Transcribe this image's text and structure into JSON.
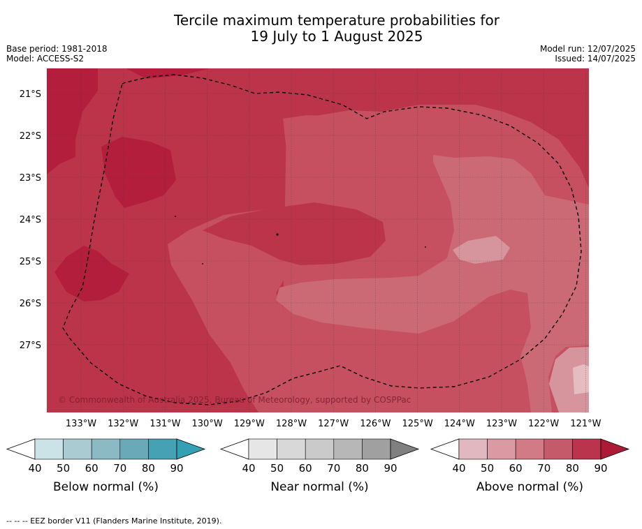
{
  "title_line1": "Tercile maximum temperature probabilities for",
  "title_line2": "19 July to 1 August 2025",
  "base_period": "Base period: 1981-2018",
  "model": "Model: ACCESS-S2",
  "model_run": "Model run: 12/07/2025",
  "issued": "Issued: 14/07/2025",
  "copyright": "© Commonwealth of Australia 2025, Bureau of Meteorology, supported by COSPPac",
  "footer": "-- -- -- EEZ border V11 (Flanders Marine Institute, 2019).",
  "map": {
    "lat_labels": [
      "21°S",
      "22°S",
      "23°S",
      "24°S",
      "25°S",
      "26°S",
      "27°S"
    ],
    "lon_labels": [
      "133°W",
      "132°W",
      "131°W",
      "130°W",
      "129°W",
      "128°W",
      "127°W",
      "126°W",
      "125°W",
      "124°W",
      "123°W",
      "122°W",
      "121°W"
    ]
  },
  "colors": {
    "above_90": "#b21e3b",
    "above_80": "#bc3449",
    "above_70": "#c6505f",
    "above_60": "#cb6a75",
    "above_50": "#d6959d",
    "above_40": "#e5bcc0"
  },
  "colorbars": [
    {
      "label": "Below normal (%)",
      "ticks": [
        "40",
        "50",
        "60",
        "70",
        "80",
        "90"
      ],
      "colors": [
        "#cbe2e7",
        "#a9cbd1",
        "#8bb9c4",
        "#6aa9b8",
        "#45a1b3",
        "#34a0b4"
      ]
    },
    {
      "label": "Near normal (%)",
      "ticks": [
        "40",
        "50",
        "60",
        "70",
        "80",
        "90"
      ],
      "colors": [
        "#e6e6e6",
        "#d8d8d8",
        "#cacaca",
        "#b7b7b7",
        "#a0a0a0",
        "#808080"
      ]
    },
    {
      "label": "Above normal (%)",
      "ticks": [
        "40",
        "50",
        "60",
        "70",
        "80",
        "90"
      ],
      "colors": [
        "#e1b8bf",
        "#d99aa4",
        "#d17b86",
        "#c55a6b",
        "#b9344c",
        "#ac1a36"
      ]
    }
  ]
}
